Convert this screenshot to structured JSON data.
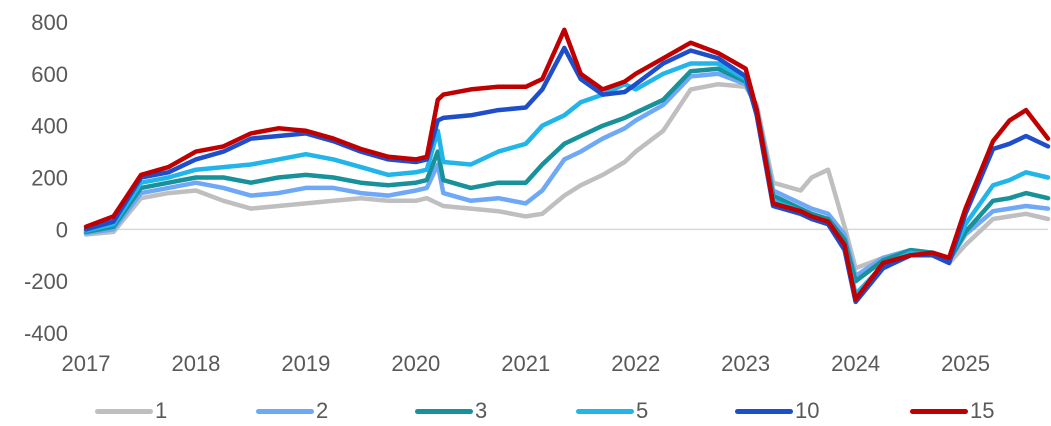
{
  "chart_data": {
    "type": "line",
    "title": "",
    "xlabel": "",
    "ylabel": "",
    "ylim": [
      -400,
      800
    ],
    "xlim": [
      2017,
      2025.75
    ],
    "yticks": [
      800,
      600,
      400,
      200,
      0,
      -200,
      -400
    ],
    "xticks": [
      "2017",
      "2018",
      "2019",
      "2020",
      "2021",
      "2022",
      "2023",
      "2024",
      "2025"
    ],
    "grid": false,
    "zero_line": true,
    "legend_position": "bottom",
    "x": [
      2017.0,
      2017.25,
      2017.5,
      2017.75,
      2018.0,
      2018.25,
      2018.5,
      2018.75,
      2019.0,
      2019.25,
      2019.5,
      2019.75,
      2020.0,
      2020.1,
      2020.2,
      2020.25,
      2020.5,
      2020.75,
      2021.0,
      2021.15,
      2021.35,
      2021.5,
      2021.7,
      2021.9,
      2022.0,
      2022.25,
      2022.5,
      2022.75,
      2023.0,
      2023.1,
      2023.25,
      2023.5,
      2023.6,
      2023.75,
      2023.9,
      2024.0,
      2024.25,
      2024.5,
      2024.7,
      2024.85,
      2025.0,
      2025.25,
      2025.4,
      2025.55,
      2025.75
    ],
    "series": [
      {
        "name": "1",
        "color": "#BFBFBF",
        "values": [
          -20,
          -10,
          120,
          140,
          150,
          110,
          80,
          90,
          100,
          110,
          120,
          110,
          110,
          120,
          100,
          90,
          80,
          70,
          50,
          60,
          130,
          170,
          210,
          260,
          300,
          380,
          540,
          560,
          550,
          480,
          180,
          150,
          200,
          230,
          10,
          -150,
          -110,
          -90,
          -100,
          -130,
          -60,
          40,
          50,
          60,
          40
        ]
      },
      {
        "name": "2",
        "color": "#6FA8F7",
        "values": [
          -15,
          0,
          140,
          160,
          180,
          160,
          130,
          140,
          160,
          160,
          140,
          130,
          150,
          160,
          250,
          140,
          110,
          120,
          100,
          150,
          270,
          300,
          350,
          390,
          420,
          480,
          590,
          600,
          560,
          470,
          150,
          100,
          80,
          60,
          -20,
          -180,
          -110,
          -80,
          -90,
          -120,
          -20,
          70,
          80,
          90,
          80
        ]
      },
      {
        "name": "3",
        "color": "#17919A",
        "values": [
          -10,
          10,
          160,
          180,
          200,
          200,
          180,
          200,
          210,
          200,
          180,
          170,
          180,
          190,
          300,
          190,
          160,
          180,
          180,
          250,
          330,
          360,
          400,
          430,
          450,
          500,
          610,
          620,
          570,
          460,
          130,
          80,
          60,
          40,
          -40,
          -200,
          -120,
          -80,
          -90,
          -120,
          -10,
          110,
          120,
          140,
          120
        ]
      },
      {
        "name": "5",
        "color": "#21B5EA",
        "values": [
          -5,
          20,
          180,
          200,
          230,
          240,
          250,
          270,
          290,
          270,
          240,
          210,
          220,
          230,
          380,
          260,
          250,
          300,
          330,
          400,
          440,
          490,
          520,
          560,
          540,
          600,
          640,
          640,
          580,
          450,
          110,
          70,
          50,
          30,
          -60,
          -250,
          -140,
          -90,
          -100,
          -120,
          20,
          170,
          190,
          220,
          200
        ]
      },
      {
        "name": "10",
        "color": "#1F4ECB",
        "values": [
          0,
          30,
          200,
          220,
          270,
          300,
          350,
          360,
          370,
          340,
          300,
          270,
          260,
          270,
          420,
          430,
          440,
          460,
          470,
          540,
          700,
          580,
          520,
          530,
          560,
          640,
          690,
          660,
          590,
          440,
          90,
          60,
          40,
          20,
          -80,
          -280,
          -150,
          -100,
          -100,
          -130,
          60,
          310,
          330,
          360,
          320
        ]
      },
      {
        "name": "15",
        "color": "#C00000",
        "values": [
          10,
          50,
          210,
          240,
          300,
          320,
          370,
          390,
          380,
          350,
          310,
          280,
          270,
          280,
          500,
          520,
          540,
          550,
          550,
          580,
          770,
          600,
          540,
          570,
          600,
          660,
          720,
          680,
          620,
          460,
          100,
          70,
          50,
          30,
          -60,
          -270,
          -130,
          -100,
          -90,
          -110,
          80,
          340,
          420,
          460,
          350
        ]
      }
    ]
  },
  "legend": {
    "labels": [
      "1",
      "2",
      "3",
      "5",
      "10",
      "15"
    ]
  }
}
